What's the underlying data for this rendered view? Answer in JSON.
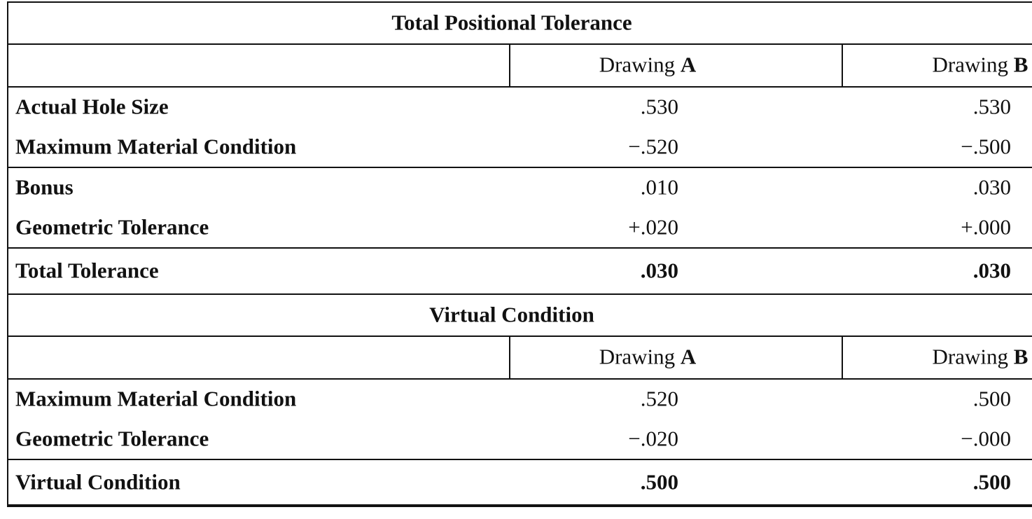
{
  "sections": [
    {
      "title": "Total Positional Tolerance",
      "columns": [
        {
          "prefix": "Drawing",
          "letter": "A"
        },
        {
          "prefix": "Drawing",
          "letter": "B"
        }
      ],
      "groups": [
        [
          {
            "label": "Actual Hole Size",
            "values": [
              ".530",
              ".530"
            ]
          },
          {
            "label": "Maximum Material Condition",
            "values": [
              "−.520",
              "−.500"
            ]
          }
        ],
        [
          {
            "label": "Bonus",
            "values": [
              ".010",
              ".030"
            ]
          },
          {
            "label": "Geometric Tolerance",
            "values": [
              "+.020",
              "+.000"
            ]
          }
        ]
      ],
      "total": {
        "label": "Total Tolerance",
        "values": [
          ".030",
          ".030"
        ]
      }
    },
    {
      "title": "Virtual Condition",
      "columns": [
        {
          "prefix": "Drawing",
          "letter": "A"
        },
        {
          "prefix": "Drawing",
          "letter": "B"
        }
      ],
      "groups": [
        [
          {
            "label": "Maximum Material Condition",
            "values": [
              ".520",
              ".500"
            ]
          },
          {
            "label": "Geometric Tolerance",
            "values": [
              "−.020",
              "−.000"
            ]
          }
        ]
      ],
      "total": {
        "label": "Virtual Condition",
        "values": [
          ".500",
          ".500"
        ]
      }
    }
  ]
}
